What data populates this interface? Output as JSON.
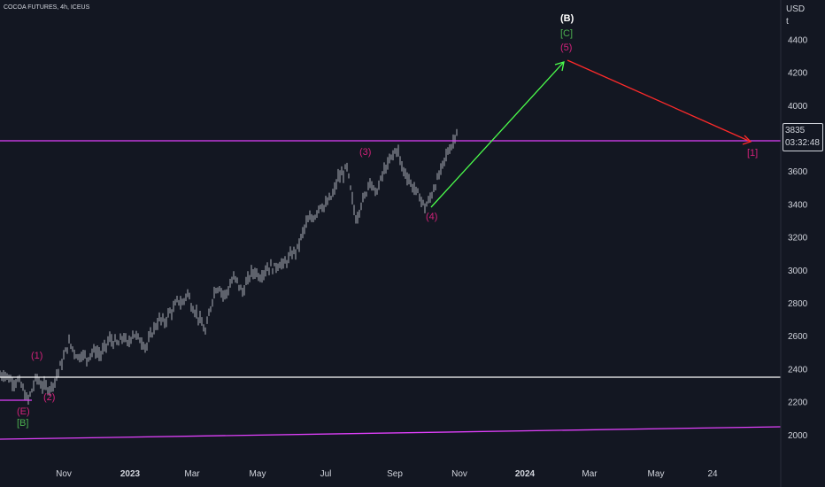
{
  "symbol_title": "COCOA FUTURES, 4h, ICEUS",
  "currency": "USD",
  "currency_unit": "t",
  "last_price": "3835",
  "countdown": "03:32:48",
  "colors": {
    "background": "#131722",
    "candles": "#d1d4dc",
    "magenta": "#e040fb",
    "white_line": "#ffffff",
    "green_arrow": "#4cff4c",
    "red_arrow": "#ff2a2a",
    "wave_label": "#d2227a",
    "green_label": "#4caf50"
  },
  "chart_data": {
    "type": "line",
    "price_axis_ticks": [
      "4400",
      "4200",
      "4000",
      "3800",
      "3600",
      "3400",
      "3200",
      "3000",
      "2800",
      "2600",
      "2400",
      "2200",
      "2000"
    ],
    "time_axis_ticks": [
      "Nov",
      "2023",
      "Mar",
      "May",
      "Jul",
      "Sep",
      "Nov",
      "2024",
      "Mar",
      "May",
      "24"
    ],
    "ylim": [
      1900,
      4550
    ],
    "series": [
      {
        "values": [
          2360,
          2370,
          2340,
          2320,
          2330,
          2280,
          2200,
          2270,
          2350,
          2300,
          2290,
          2280,
          2330,
          2400,
          2470,
          2560,
          2520,
          2470,
          2490,
          2460,
          2500,
          2510,
          2480,
          2530,
          2580,
          2560,
          2550,
          2600,
          2540,
          2620,
          2590,
          2570,
          2530,
          2600,
          2660,
          2700,
          2680,
          2740,
          2760,
          2820,
          2790,
          2870,
          2780,
          2740,
          2680,
          2620,
          2760,
          2880,
          2900,
          2840,
          2880,
          2950,
          2930,
          2860,
          2920,
          2980,
          2990,
          2960,
          3000,
          3020,
          3010,
          3040,
          3030,
          3060,
          3100,
          3120,
          3200,
          3280,
          3310,
          3330,
          3400,
          3380,
          3420,
          3460,
          3560,
          3580,
          3620,
          3440,
          3300,
          3400,
          3450,
          3560,
          3460,
          3510,
          3600,
          3640,
          3700,
          3740,
          3620,
          3580,
          3520,
          3480,
          3440,
          3380,
          3420,
          3500,
          3560,
          3640,
          3720,
          3760,
          3850
        ]
      }
    ],
    "horizontal_levels": [
      {
        "price": 3835,
        "color": "magenta"
      },
      {
        "price": 2350,
        "color": "white"
      }
    ],
    "wave_labels": [
      {
        "text": "(1)",
        "color": "magenta_label"
      },
      {
        "text": "(2)",
        "color": "magenta_label"
      },
      {
        "text": "(E)",
        "color": "magenta_label"
      },
      {
        "text": "[B]",
        "color": "green_label"
      },
      {
        "text": "(3)",
        "color": "magenta_label"
      },
      {
        "text": "(4)",
        "color": "magenta_label"
      },
      {
        "text": "(B)",
        "color": "white"
      },
      {
        "text": "[C]",
        "color": "green_label"
      },
      {
        "text": "(5)",
        "color": "magenta_label"
      },
      {
        "text": "[1]",
        "color": "magenta_label"
      }
    ]
  }
}
